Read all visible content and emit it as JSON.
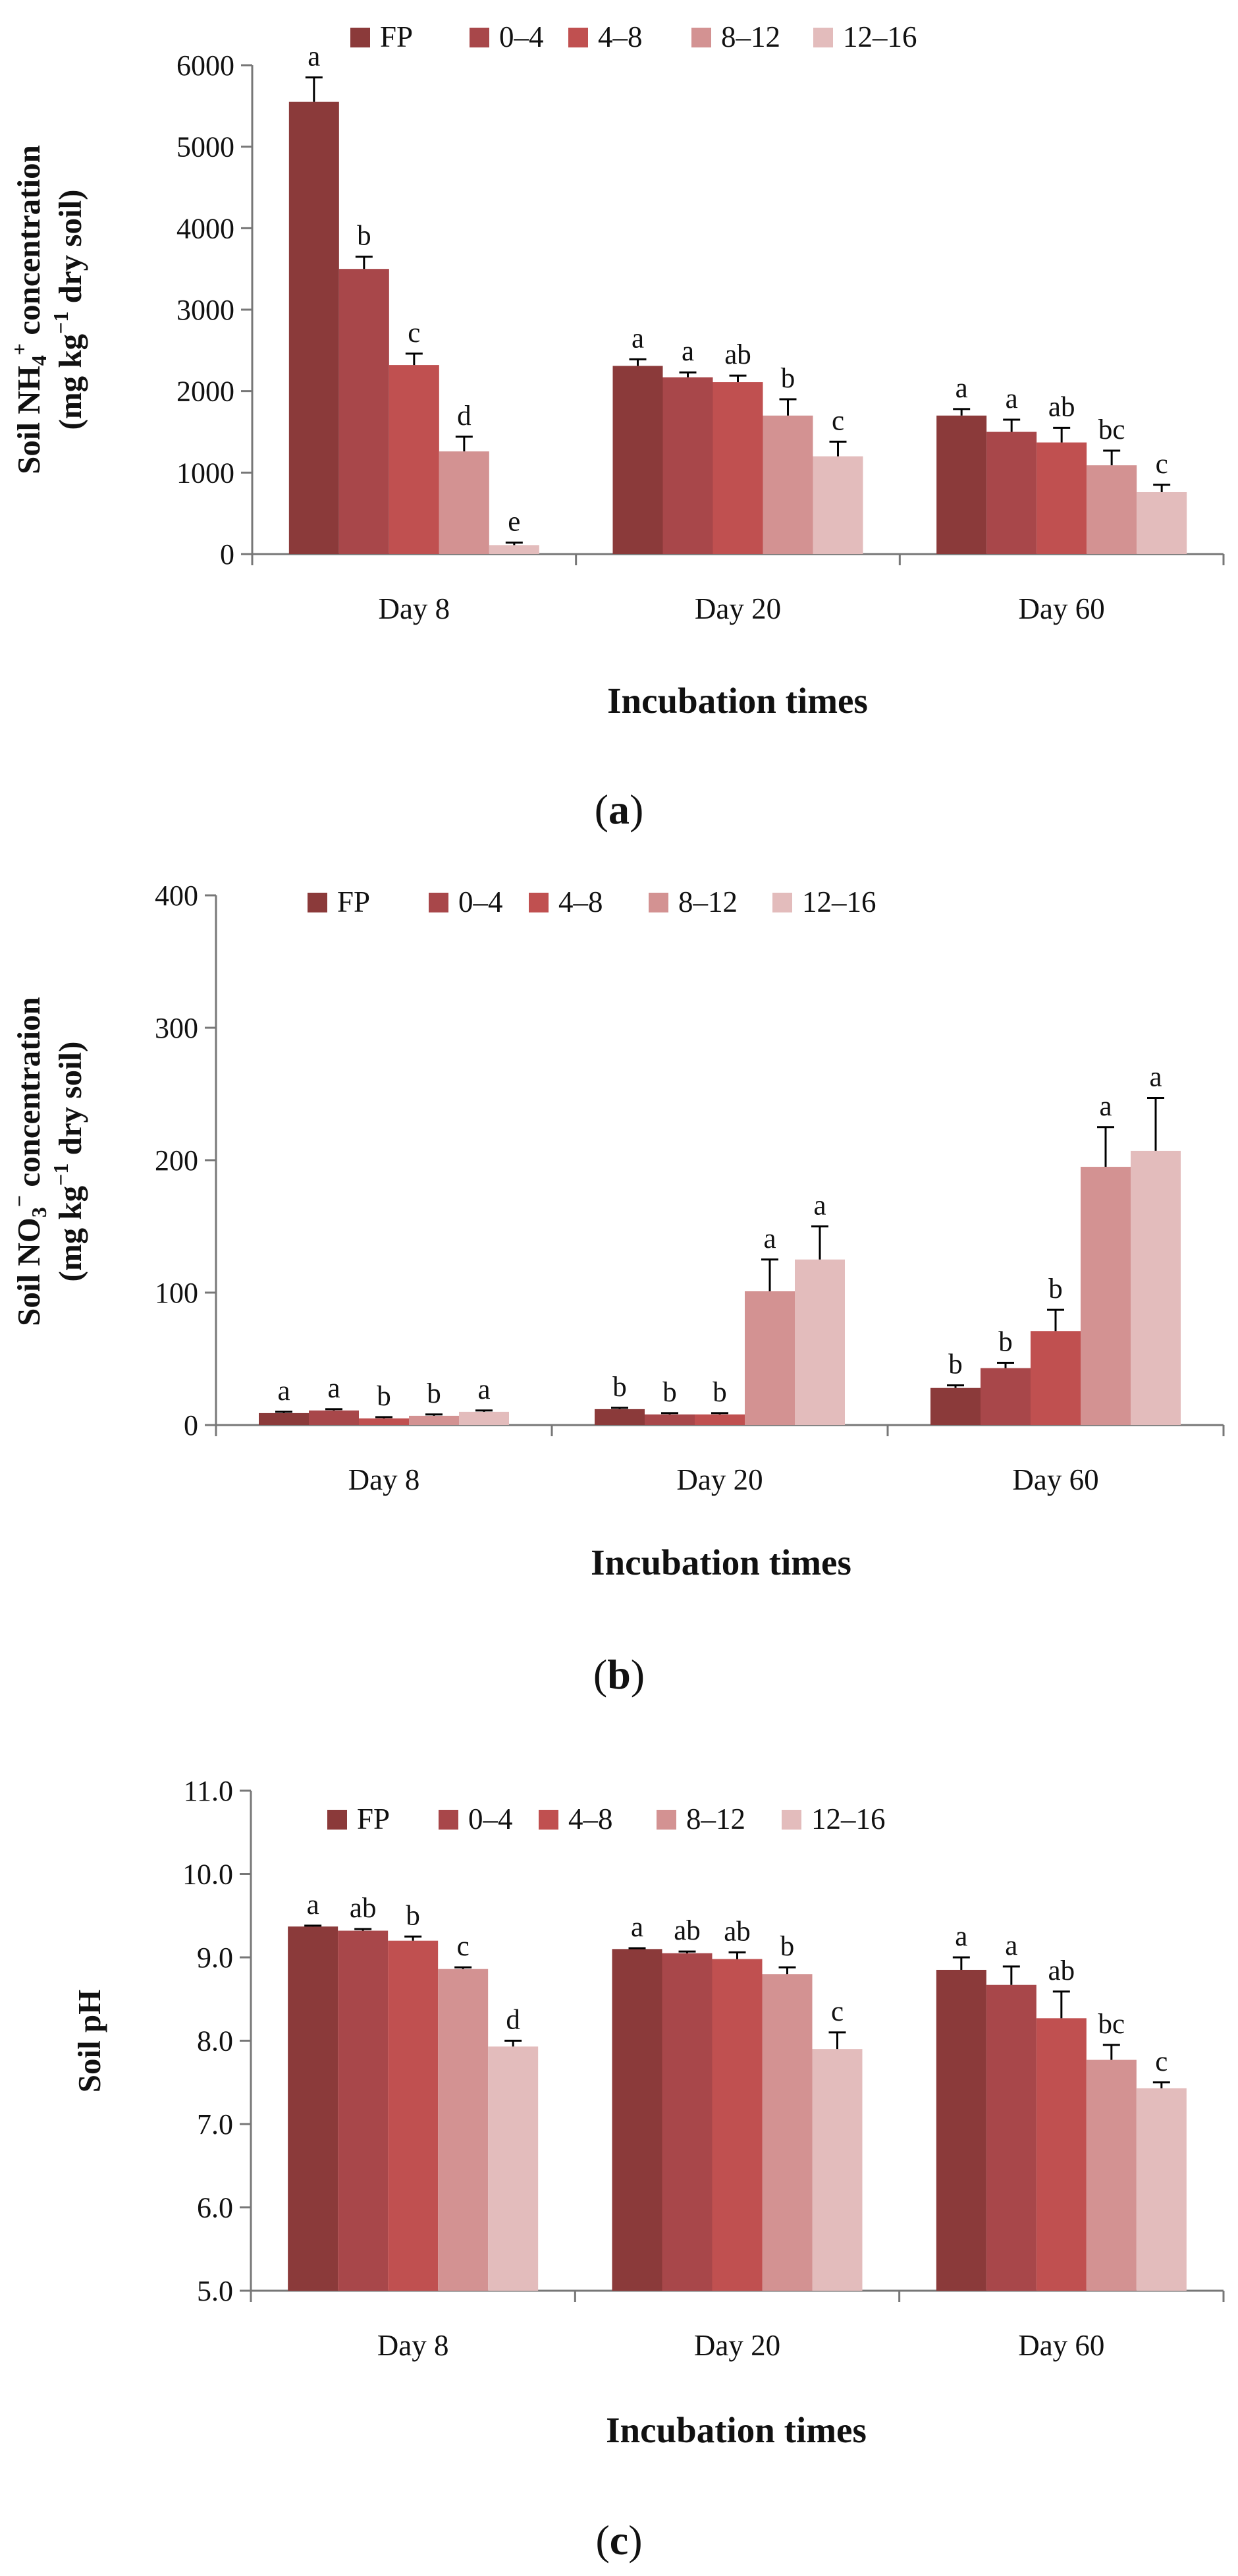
{
  "series_colors": {
    "FP": "#8b3a3a",
    "0–4": "#a8474a",
    "4–8": "#c05050",
    "8–12": "#d39292",
    "12–16": "#e3bcbc"
  },
  "chart_data": [
    {
      "type": "bar",
      "panel": "a",
      "categories": [
        "Day 8",
        "Day 20",
        "Day 60"
      ],
      "xlabel": "Incubation times",
      "ylabel": {
        "line1_pre": "Soil NH",
        "line1_sub": "4",
        "line1_sup": "+",
        "line1_post": " concentration",
        "line2_pre": "(mg kg",
        "line2_sup": "−1",
        "line2_post": " dry soil)"
      },
      "ylim": [
        0,
        6000
      ],
      "yticks": [
        0,
        1000,
        2000,
        3000,
        4000,
        5000,
        6000
      ],
      "ytick_labels": [
        "0",
        "1000",
        "2000",
        "3000",
        "4000",
        "5000",
        "6000"
      ],
      "series": [
        {
          "name": "FP",
          "values": [
            5550,
            2310,
            1700
          ],
          "errors": [
            300,
            80,
            80
          ],
          "letters": [
            "a",
            "a",
            "a"
          ]
        },
        {
          "name": "0–4",
          "values": [
            3500,
            2170,
            1500
          ],
          "errors": [
            150,
            60,
            150
          ],
          "letters": [
            "b",
            "a",
            "a"
          ]
        },
        {
          "name": "4–8",
          "values": [
            2320,
            2110,
            1370
          ],
          "errors": [
            140,
            80,
            180
          ],
          "letters": [
            "c",
            "ab",
            "ab"
          ]
        },
        {
          "name": "8–12",
          "values": [
            1260,
            1700,
            1090
          ],
          "errors": [
            180,
            200,
            180
          ],
          "letters": [
            "d",
            "b",
            "bc"
          ]
        },
        {
          "name": "12–16",
          "values": [
            110,
            1200,
            760
          ],
          "errors": [
            30,
            180,
            90
          ],
          "letters": [
            "e",
            "c",
            "c"
          ]
        }
      ],
      "panel_label": "a"
    },
    {
      "type": "bar",
      "panel": "b",
      "categories": [
        "Day 8",
        "Day 20",
        "Day 60"
      ],
      "xlabel": "Incubation times",
      "ylabel": {
        "line1_pre": "Soil NO",
        "line1_sub": "3",
        "line1_sup": "−",
        "line1_post": " concentration",
        "line2_pre": "(mg kg",
        "line2_sup": "−1",
        "line2_post": " dry soil)"
      },
      "ylim": [
        0,
        400
      ],
      "yticks": [
        0,
        100,
        200,
        300,
        400
      ],
      "ytick_labels": [
        "0",
        "100",
        "200",
        "300",
        "400"
      ],
      "series": [
        {
          "name": "FP",
          "values": [
            9,
            12,
            28
          ],
          "errors": [
            1,
            1,
            2
          ],
          "letters": [
            "a",
            "b",
            "b"
          ]
        },
        {
          "name": "0–4",
          "values": [
            11,
            8,
            43
          ],
          "errors": [
            1,
            1,
            4
          ],
          "letters": [
            "a",
            "b",
            "b"
          ]
        },
        {
          "name": "4–8",
          "values": [
            5,
            8,
            71
          ],
          "errors": [
            1,
            1,
            16
          ],
          "letters": [
            "b",
            "b",
            "b"
          ]
        },
        {
          "name": "8–12",
          "values": [
            7,
            101,
            195
          ],
          "errors": [
            1,
            24,
            30
          ],
          "letters": [
            "b",
            "a",
            "a"
          ]
        },
        {
          "name": "12–16",
          "values": [
            10,
            125,
            207
          ],
          "errors": [
            1,
            25,
            40
          ],
          "letters": [
            "a",
            "a",
            "a"
          ]
        }
      ],
      "panel_label": "b"
    },
    {
      "type": "bar",
      "panel": "c",
      "categories": [
        "Day 8",
        "Day 20",
        "Day 60"
      ],
      "xlabel": "Incubation times",
      "ylabel": {
        "text": "Soil pH"
      },
      "ylim": [
        5.0,
        11.0
      ],
      "yticks": [
        5,
        6,
        7,
        8,
        9,
        10,
        11
      ],
      "ytick_labels": [
        "5.0",
        "6.0",
        "7.0",
        "8.0",
        "9.0",
        "10.0",
        "11.0"
      ],
      "series": [
        {
          "name": "FP",
          "values": [
            9.37,
            9.1,
            8.85
          ],
          "errors": [
            0.01,
            0.01,
            0.15
          ],
          "letters": [
            "a",
            "a",
            "a"
          ]
        },
        {
          "name": "0–4",
          "values": [
            9.32,
            9.05,
            8.67
          ],
          "errors": [
            0.02,
            0.02,
            0.22
          ],
          "letters": [
            "ab",
            "ab",
            "a"
          ]
        },
        {
          "name": "4–8",
          "values": [
            9.2,
            8.98,
            8.27
          ],
          "errors": [
            0.05,
            0.08,
            0.32
          ],
          "letters": [
            "b",
            "ab",
            "ab"
          ]
        },
        {
          "name": "8–12",
          "values": [
            8.86,
            8.8,
            7.77
          ],
          "errors": [
            0.02,
            0.08,
            0.18
          ],
          "letters": [
            "c",
            "b",
            "bc"
          ]
        },
        {
          "name": "12–16",
          "values": [
            7.93,
            7.9,
            7.43
          ],
          "errors": [
            0.07,
            0.2,
            0.07
          ],
          "letters": [
            "d",
            "c",
            "c"
          ]
        }
      ],
      "panel_label": "c"
    }
  ]
}
